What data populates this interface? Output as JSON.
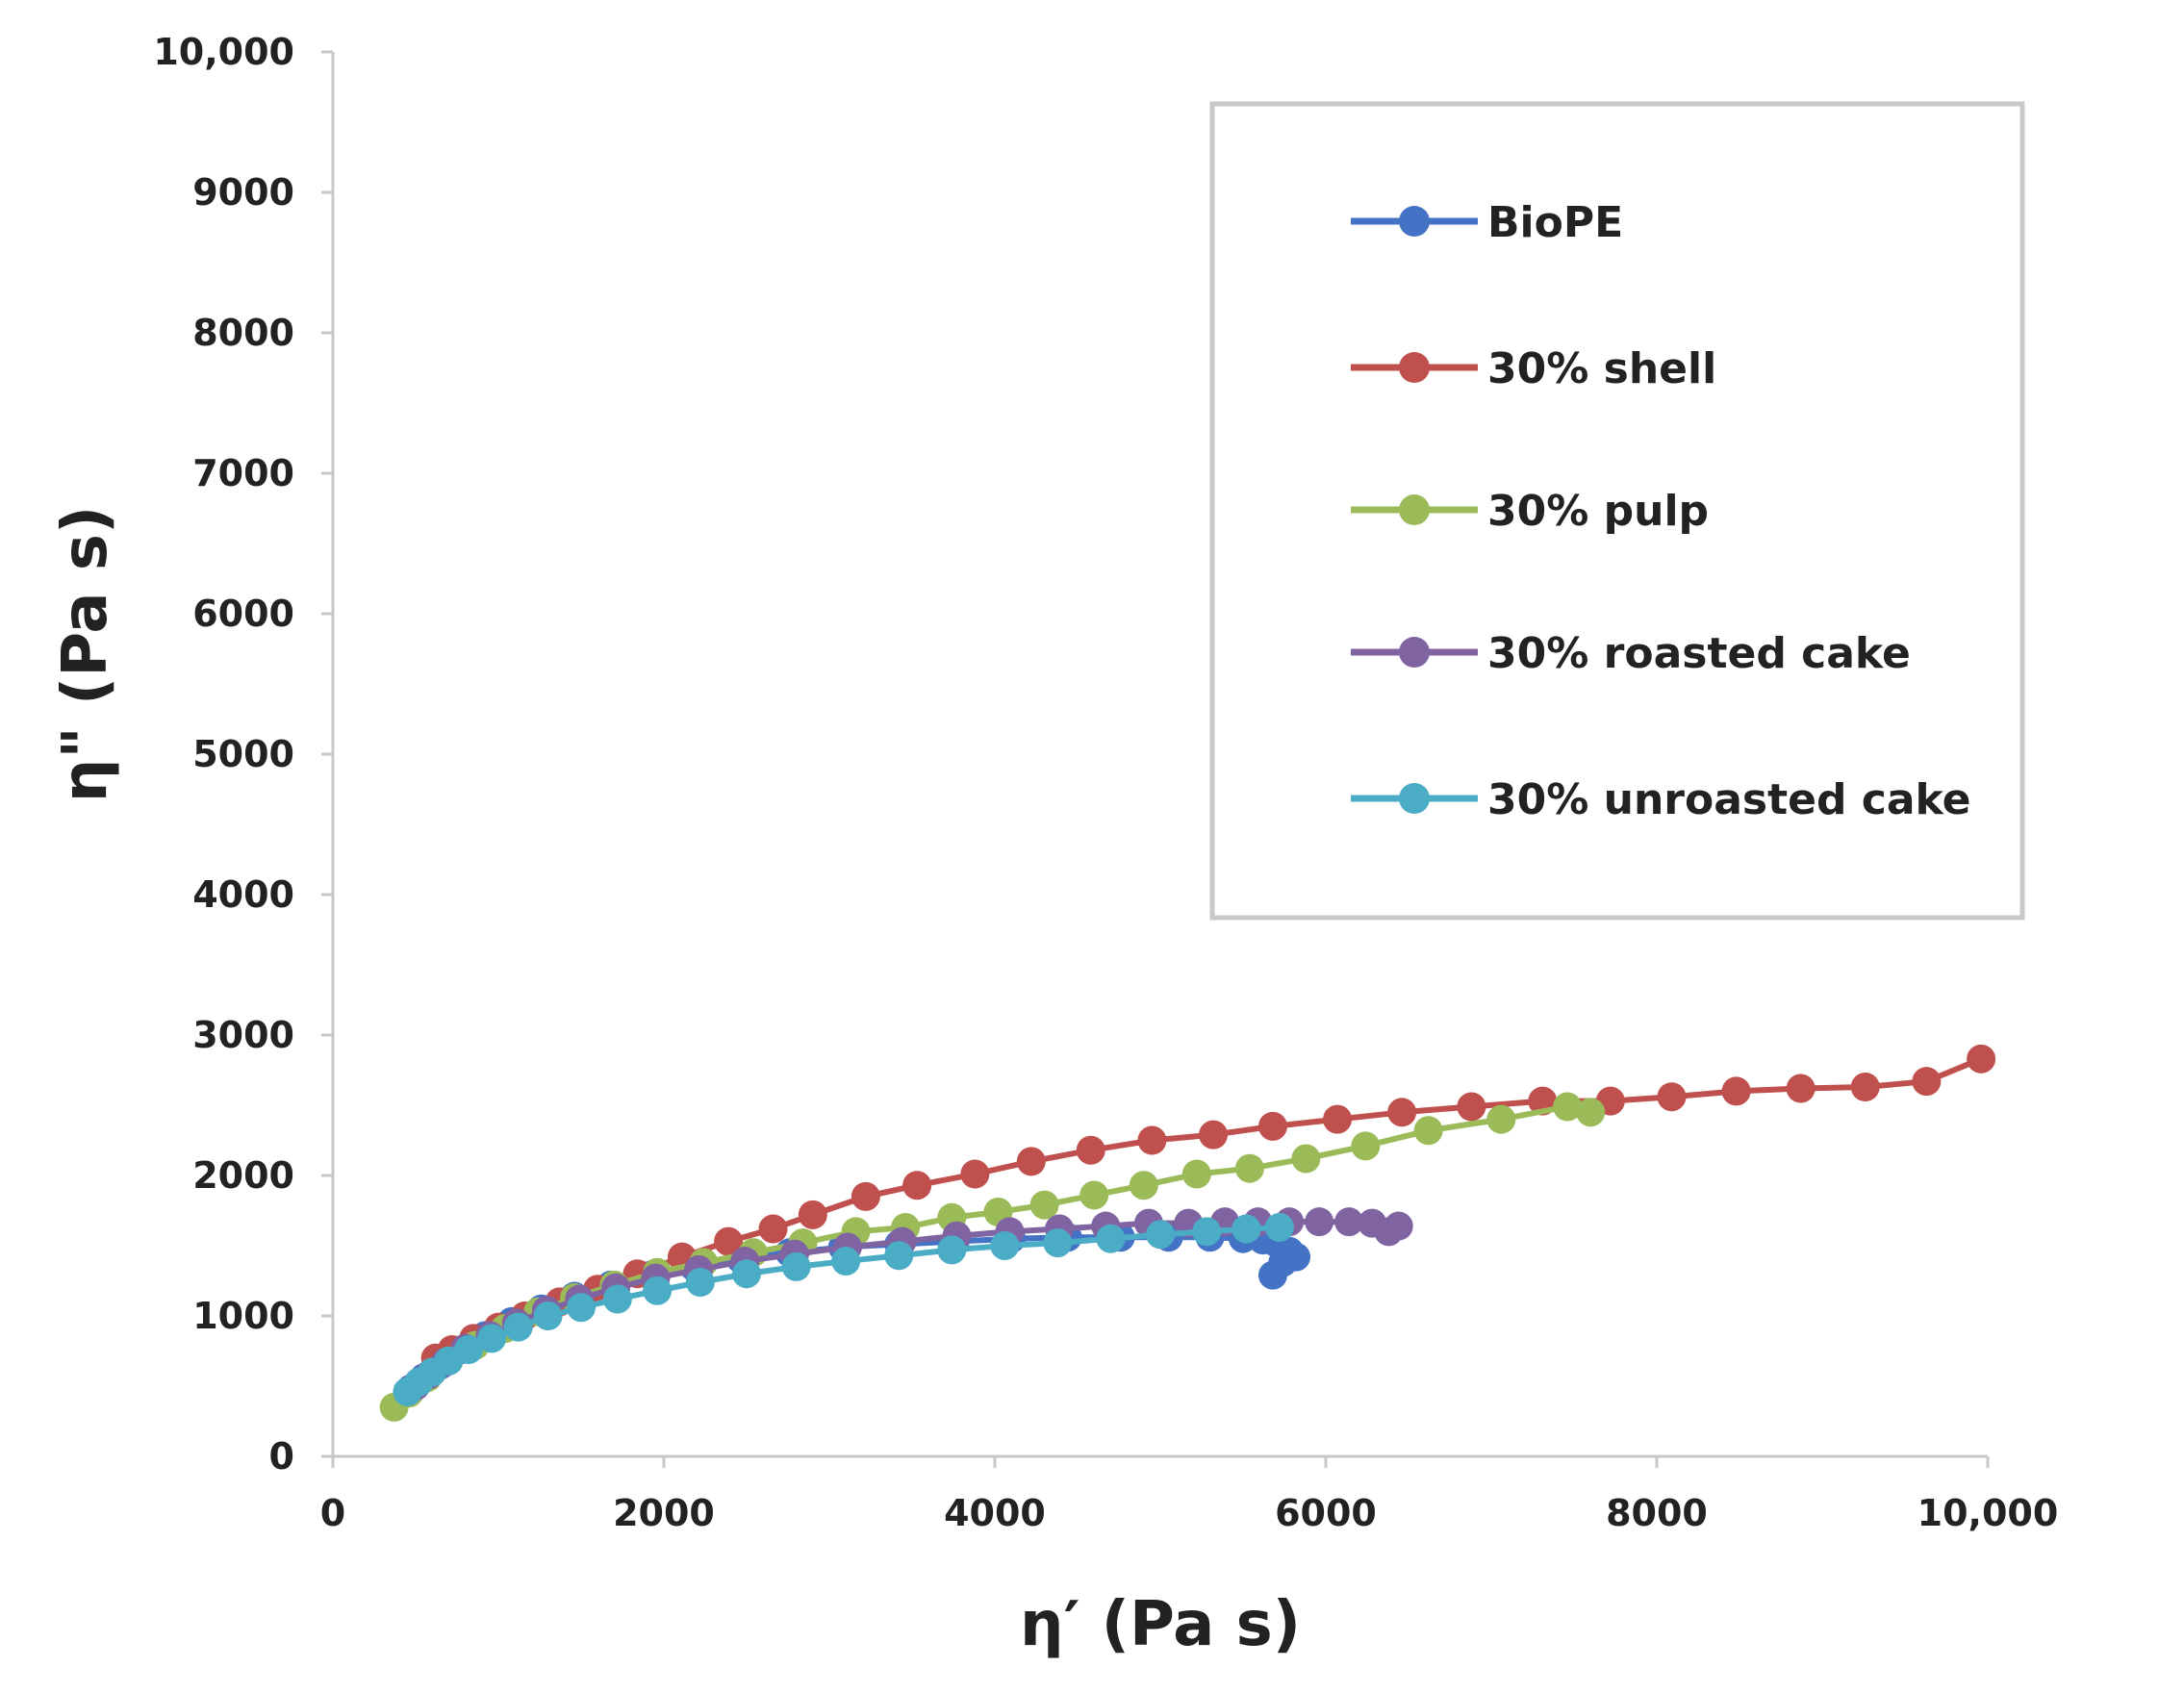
{
  "chart_data": {
    "type": "scatter",
    "title": "",
    "xlabel": "η′ (Pa s)",
    "ylabel": "η\" (Pa s)",
    "xlim": [
      0,
      10000
    ],
    "ylim": [
      0,
      10000
    ],
    "x_ticks": [
      0,
      2000,
      4000,
      6000,
      8000,
      10000
    ],
    "x_tick_labels": [
      "0",
      "2000",
      "4000",
      "6000",
      "8000",
      "10,000"
    ],
    "y_ticks": [
      0,
      1000,
      2000,
      3000,
      4000,
      5000,
      6000,
      7000,
      8000,
      9000,
      10000
    ],
    "y_tick_labels": [
      "0",
      "1000",
      "2000",
      "3000",
      "4000",
      "5000",
      "6000",
      "7000",
      "8000",
      "9000",
      "10,000"
    ],
    "grid": false,
    "legend_position": "top-right",
    "series": [
      {
        "name": "BioPE",
        "color": "#4472c4",
        "x": [
          470,
          550,
          650,
          780,
          920,
          1080,
          1260,
          1460,
          1680,
          1920,
          2180,
          2460,
          2760,
          3080,
          3420,
          3760,
          4100,
          4440,
          4760,
          5050,
          5300,
          5500,
          5620,
          5700,
          5780,
          5820,
          5740,
          5680
        ],
        "y": [
          480,
          560,
          650,
          760,
          860,
          960,
          1050,
          1140,
          1220,
          1290,
          1350,
          1410,
          1450,
          1490,
          1510,
          1530,
          1550,
          1560,
          1560,
          1560,
          1560,
          1550,
          1540,
          1520,
          1460,
          1420,
          1380,
          1290
        ]
      },
      {
        "name": "30% shell",
        "color": "#c0504d",
        "x": [
          620,
          720,
          850,
          1000,
          1160,
          1370,
          1600,
          1840,
          2110,
          2390,
          2660,
          2900,
          3220,
          3530,
          3880,
          4220,
          4580,
          4950,
          5320,
          5680,
          6070,
          6460,
          6880,
          7310,
          7720,
          8090,
          8480,
          8870,
          9260,
          9630,
          9960
        ],
        "y": [
          700,
          760,
          840,
          920,
          1000,
          1100,
          1190,
          1300,
          1420,
          1530,
          1620,
          1720,
          1850,
          1930,
          2010,
          2100,
          2180,
          2250,
          2290,
          2350,
          2400,
          2450,
          2490,
          2530,
          2530,
          2560,
          2600,
          2620,
          2630,
          2670,
          2830
        ]
      },
      {
        "name": "30% pulp",
        "color": "#9bbb59",
        "x": [
          370,
          460,
          570,
          700,
          860,
          1040,
          1240,
          1460,
          1700,
          1960,
          2240,
          2540,
          2840,
          3160,
          3460,
          3740,
          4020,
          4300,
          4600,
          4900,
          5220,
          5540,
          5880,
          6240,
          6620,
          7060,
          7460,
          7600
        ],
        "y": [
          350,
          450,
          560,
          680,
          790,
          910,
          1030,
          1130,
          1220,
          1310,
          1380,
          1450,
          1520,
          1600,
          1630,
          1700,
          1740,
          1790,
          1860,
          1930,
          2010,
          2050,
          2120,
          2210,
          2320,
          2400,
          2490,
          2450
        ]
      },
      {
        "name": "30% roasted cake",
        "color": "#8064a2",
        "x": [
          500,
          580,
          680,
          800,
          950,
          1110,
          1290,
          1490,
          1710,
          1950,
          2210,
          2490,
          2790,
          3110,
          3440,
          3770,
          4090,
          4390,
          4670,
          4930,
          5170,
          5390,
          5590,
          5780,
          5960,
          6140,
          6280,
          6380,
          6440
        ],
        "y": [
          500,
          580,
          670,
          770,
          860,
          950,
          1040,
          1120,
          1200,
          1270,
          1330,
          1390,
          1440,
          1490,
          1530,
          1570,
          1600,
          1620,
          1640,
          1660,
          1660,
          1670,
          1670,
          1670,
          1670,
          1670,
          1660,
          1600,
          1640
        ]
      },
      {
        "name": "30% unroasted cake",
        "color": "#4bacc6",
        "x": [
          450,
          520,
          600,
          700,
          820,
          960,
          1120,
          1300,
          1500,
          1720,
          1960,
          2220,
          2500,
          2800,
          3100,
          3420,
          3740,
          4060,
          4380,
          4700,
          5000,
          5280,
          5520,
          5720
        ],
        "y": [
          460,
          530,
          600,
          680,
          760,
          840,
          920,
          1000,
          1060,
          1120,
          1180,
          1240,
          1300,
          1350,
          1390,
          1430,
          1470,
          1500,
          1520,
          1550,
          1580,
          1600,
          1620,
          1630
        ]
      }
    ]
  }
}
